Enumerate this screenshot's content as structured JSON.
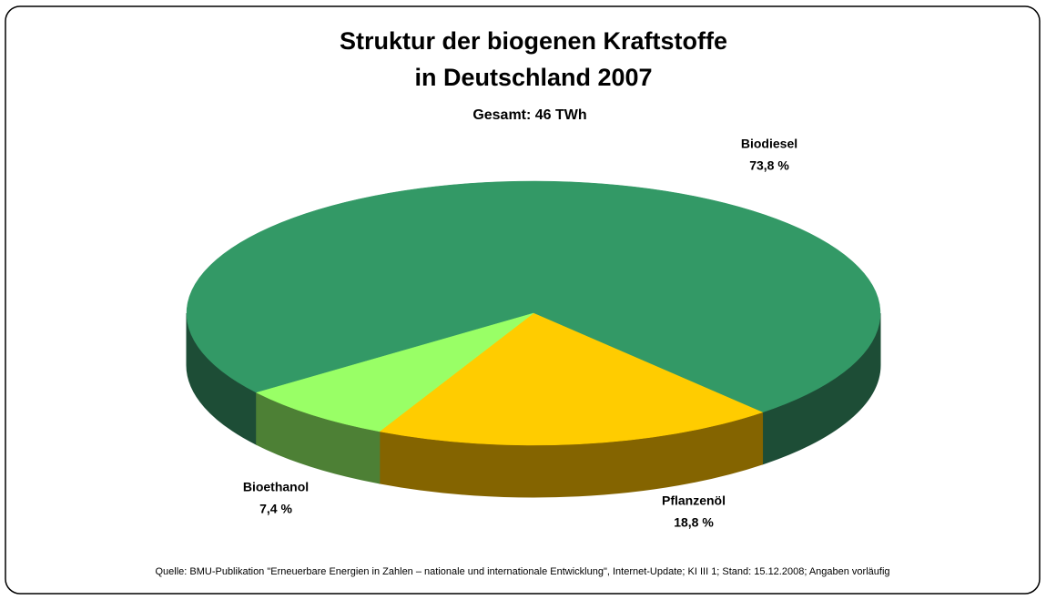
{
  "chart_data": {
    "type": "pie3d",
    "title": [
      "Struktur der biogenen Kraftstoffe",
      "in Deutschland 2007"
    ],
    "subtitle": "Gesamt: 46 TWh",
    "categories": [
      "Biodiesel",
      "Pflanzenöl",
      "Bioethanol"
    ],
    "values": [
      73.8,
      18.8,
      7.4
    ],
    "value_labels": [
      "73,8 %",
      "18,8 %",
      "7,4 %"
    ],
    "colors": [
      "#339966",
      "#ffcc00",
      "#99ff66"
    ],
    "side_colors": [
      "#1d4d36",
      "#846400",
      "#4d8035"
    ],
    "source": "Quelle: BMU-Publikation \"Erneuerbare Energien in Zahlen – nationale und internationale Entwicklung\", Internet-Update; KI III 1; Stand: 15.12.2008; Angaben vorläufig"
  }
}
